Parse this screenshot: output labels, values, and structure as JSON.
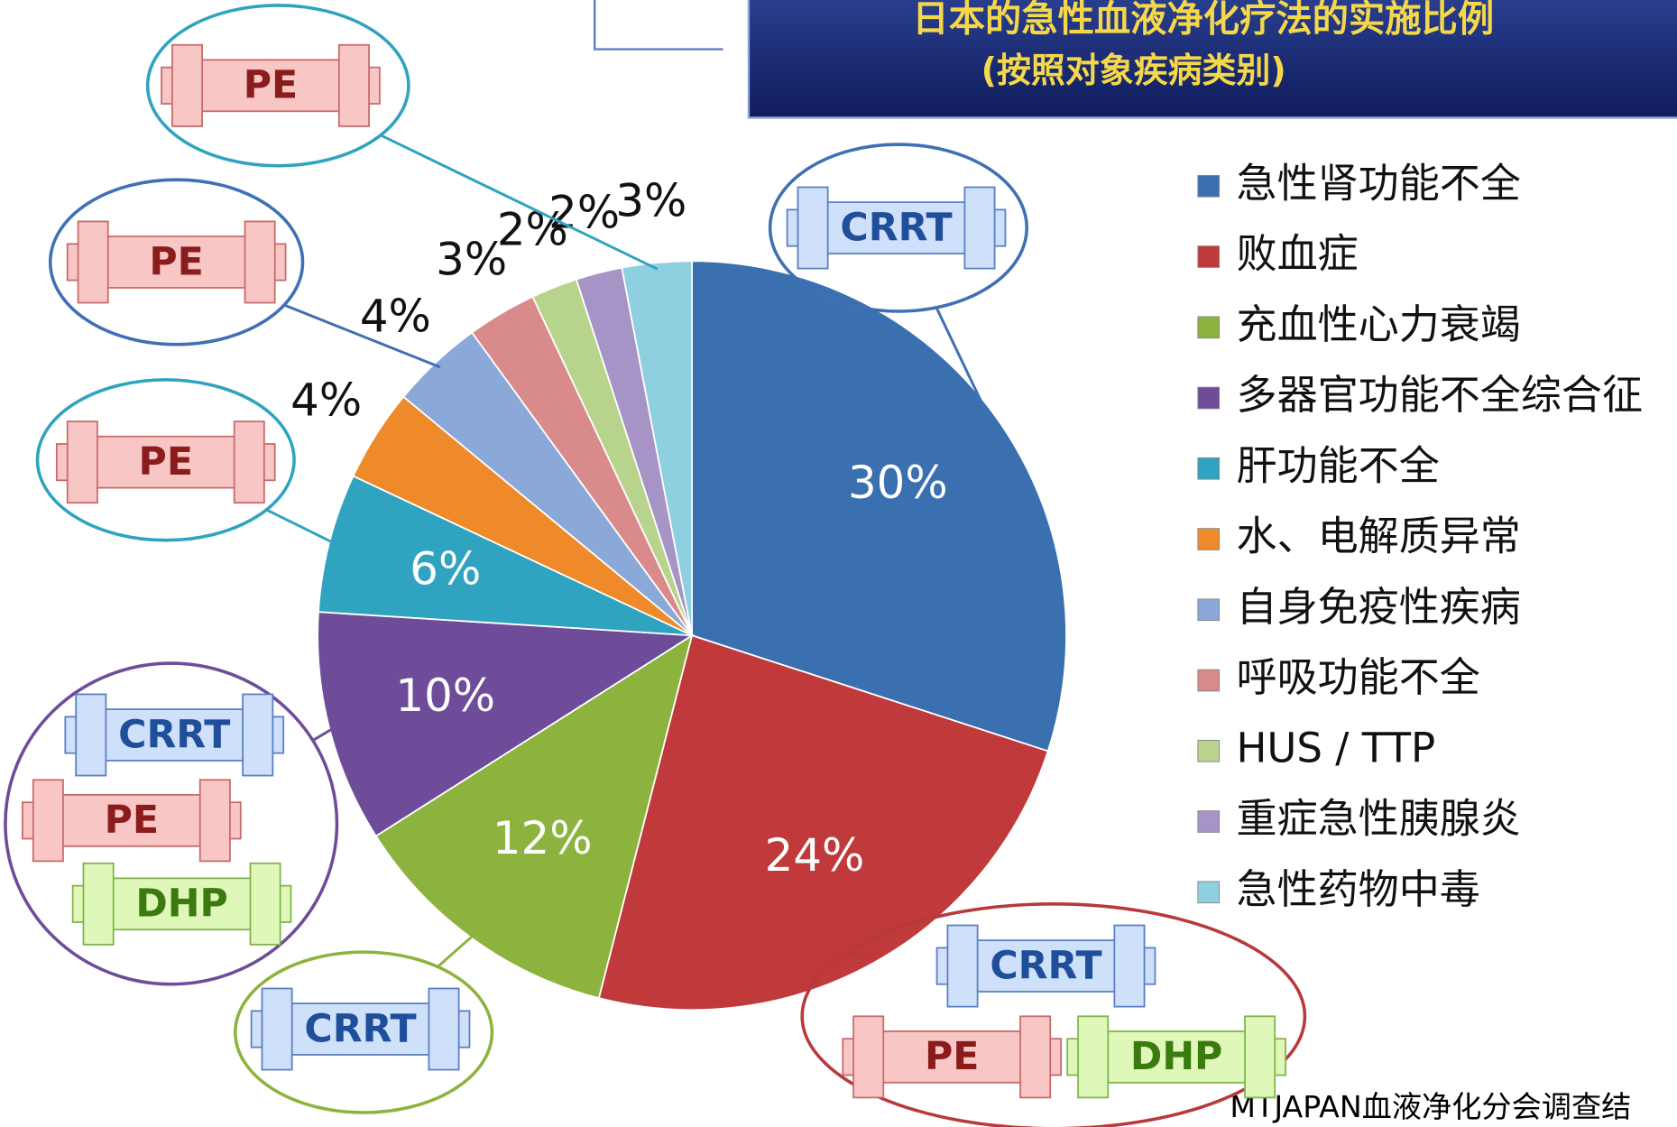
{
  "chart_data": {
    "type": "pie",
    "title": "日本的急性血液净化疗法的实施比例",
    "subtitle": "(按照对象疾病类别)",
    "categories": [
      "急性肾功能不全",
      "败血症",
      "充血性心力衰竭",
      "多器官功能不全综合征",
      "肝功能不全",
      "水、电解质异常",
      "自身免疫性疾病",
      "呼吸功能不全",
      "HUS / TTP",
      "重症急性胰腺炎",
      "急性药物中毒"
    ],
    "values": [
      30,
      24,
      12,
      10,
      6,
      4,
      4,
      3,
      2,
      2,
      3
    ],
    "value_labels": [
      "30%",
      "24%",
      "12%",
      "10%",
      "6%",
      "4%",
      "4%",
      "3%",
      "2%",
      "2%",
      "3%"
    ],
    "colors": [
      "#3a6fb0",
      "#c0393b",
      "#8db33f",
      "#6e4c9a",
      "#2fa3bf",
      "#ee8a2a",
      "#8aa8d8",
      "#d98a8a",
      "#b8d48c",
      "#a694c6",
      "#8ecfe0"
    ],
    "annotations": [
      {
        "labels": [
          "CRRT"
        ]
      },
      {
        "labels": [
          "CRRT",
          "PE",
          "DHP"
        ]
      },
      {
        "labels": [
          "CRRT"
        ]
      },
      {
        "labels": [
          "CRRT",
          "PE",
          "DHP"
        ]
      },
      {
        "labels": [
          "PE"
        ]
      },
      {
        "labels": [
          "PE"
        ]
      },
      {
        "labels": [
          "PE"
        ]
      }
    ],
    "source": "MTJAPAN血液净化分会调查结"
  }
}
